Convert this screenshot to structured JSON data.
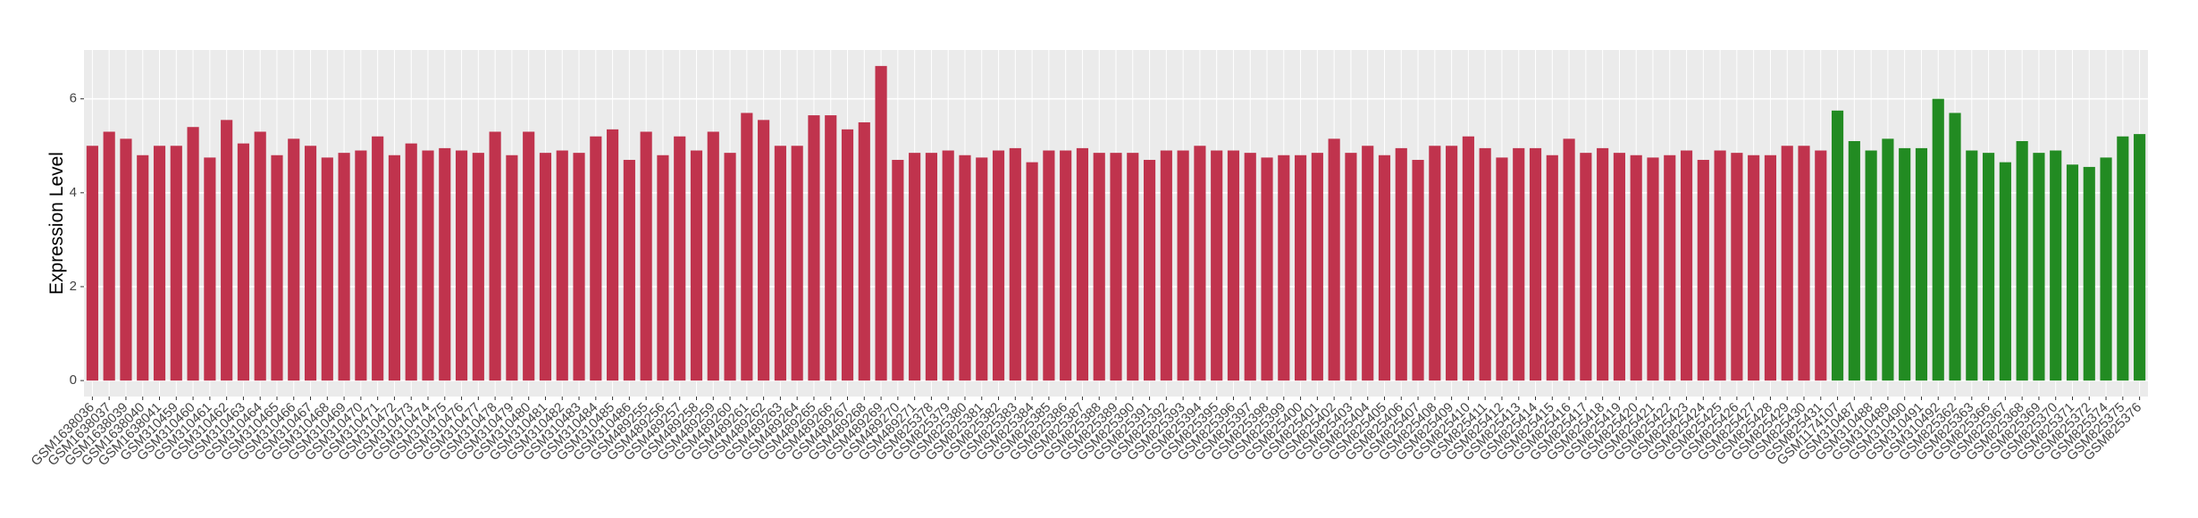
{
  "chart_data": {
    "type": "bar",
    "y_label": "Expression Level",
    "categories": [
      "GSM1638036",
      "GSM1638037",
      "GSM1638039",
      "GSM1638040",
      "GSM1638041",
      "GSM310459",
      "GSM310460",
      "GSM310461",
      "GSM310462",
      "GSM310463",
      "GSM310464",
      "GSM310465",
      "GSM310466",
      "GSM310467",
      "GSM310468",
      "GSM310469",
      "GSM310470",
      "GSM310471",
      "GSM310472",
      "GSM310473",
      "GSM310474",
      "GSM310475",
      "GSM310476",
      "GSM310477",
      "GSM310478",
      "GSM310479",
      "GSM310480",
      "GSM310481",
      "GSM310482",
      "GSM310483",
      "GSM310484",
      "GSM310485",
      "GSM310486",
      "GSM489255",
      "GSM489256",
      "GSM489257",
      "GSM489258",
      "GSM489259",
      "GSM489260",
      "GSM489261",
      "GSM489262",
      "GSM489263",
      "GSM489264",
      "GSM489265",
      "GSM489266",
      "GSM489267",
      "GSM489268",
      "GSM489269",
      "GSM489270",
      "GSM489271",
      "GSM825378",
      "GSM825379",
      "GSM825380",
      "GSM825381",
      "GSM825382",
      "GSM825383",
      "GSM825384",
      "GSM825385",
      "GSM825386",
      "GSM825387",
      "GSM825388",
      "GSM825389",
      "GSM825390",
      "GSM825391",
      "GSM825392",
      "GSM825393",
      "GSM825394",
      "GSM825395",
      "GSM825396",
      "GSM825397",
      "GSM825398",
      "GSM825399",
      "GSM825400",
      "GSM825401",
      "GSM825402",
      "GSM825403",
      "GSM825404",
      "GSM825405",
      "GSM825406",
      "GSM825407",
      "GSM825408",
      "GSM825409",
      "GSM825410",
      "GSM825411",
      "GSM825412",
      "GSM825413",
      "GSM825414",
      "GSM825415",
      "GSM825416",
      "GSM825417",
      "GSM825418",
      "GSM825419",
      "GSM825420",
      "GSM825421",
      "GSM825422",
      "GSM825423",
      "GSM825424",
      "GSM825425",
      "GSM825426",
      "GSM825427",
      "GSM825428",
      "GSM825429",
      "GSM825430",
      "GSM825431",
      "GSM1174107",
      "GSM310487",
      "GSM310488",
      "GSM310489",
      "GSM310490",
      "GSM310491",
      "GSM310492",
      "GSM825362",
      "GSM825363",
      "GSM825366",
      "GSM825367",
      "GSM825368",
      "GSM825369",
      "GSM825370",
      "GSM825371",
      "GSM825372",
      "GSM825374",
      "GSM825375",
      "GSM825376"
    ],
    "values": [
      5.0,
      5.3,
      5.15,
      4.8,
      5.0,
      5.0,
      5.4,
      4.75,
      5.55,
      5.05,
      5.3,
      4.8,
      5.15,
      5.0,
      4.75,
      4.85,
      4.9,
      5.2,
      4.8,
      5.05,
      4.9,
      4.95,
      4.9,
      4.85,
      5.3,
      4.8,
      5.3,
      4.85,
      4.9,
      4.85,
      5.2,
      5.35,
      4.7,
      5.3,
      4.8,
      5.2,
      4.9,
      5.3,
      4.85,
      5.7,
      5.55,
      5.0,
      5.0,
      5.65,
      5.65,
      5.35,
      5.5,
      6.7,
      4.7,
      4.85,
      4.85,
      4.9,
      4.8,
      4.75,
      4.9,
      4.95,
      4.65,
      4.9,
      4.9,
      4.95,
      4.85,
      4.85,
      4.85,
      4.7,
      4.9,
      4.9,
      5.0,
      4.9,
      4.9,
      4.85,
      4.75,
      4.8,
      4.8,
      4.85,
      5.15,
      4.85,
      5.0,
      4.8,
      4.95,
      4.7,
      5.0,
      5.0,
      5.2,
      4.95,
      4.75,
      4.95,
      4.95,
      4.8,
      5.15,
      4.85,
      4.95,
      4.85,
      4.8,
      4.75,
      4.8,
      4.9,
      4.7,
      4.9,
      4.85,
      4.8,
      4.8,
      5.0,
      5.0,
      4.9,
      5.75,
      5.1,
      4.9,
      5.15,
      4.95,
      4.95,
      6.0,
      5.7,
      4.9,
      4.85,
      4.65,
      5.1,
      4.85,
      4.9,
      4.6,
      4.55,
      4.75,
      5.2,
      5.25
    ],
    "colors": [
      "#c0334d",
      "#c0334d",
      "#c0334d",
      "#c0334d",
      "#c0334d",
      "#c0334d",
      "#c0334d",
      "#c0334d",
      "#c0334d",
      "#c0334d",
      "#c0334d",
      "#c0334d",
      "#c0334d",
      "#c0334d",
      "#c0334d",
      "#c0334d",
      "#c0334d",
      "#c0334d",
      "#c0334d",
      "#c0334d",
      "#c0334d",
      "#c0334d",
      "#c0334d",
      "#c0334d",
      "#c0334d",
      "#c0334d",
      "#c0334d",
      "#c0334d",
      "#c0334d",
      "#c0334d",
      "#c0334d",
      "#c0334d",
      "#c0334d",
      "#c0334d",
      "#c0334d",
      "#c0334d",
      "#c0334d",
      "#c0334d",
      "#c0334d",
      "#c0334d",
      "#c0334d",
      "#c0334d",
      "#c0334d",
      "#c0334d",
      "#c0334d",
      "#c0334d",
      "#c0334d",
      "#c0334d",
      "#c0334d",
      "#c0334d",
      "#c0334d",
      "#c0334d",
      "#c0334d",
      "#c0334d",
      "#c0334d",
      "#c0334d",
      "#c0334d",
      "#c0334d",
      "#c0334d",
      "#c0334d",
      "#c0334d",
      "#c0334d",
      "#c0334d",
      "#c0334d",
      "#c0334d",
      "#c0334d",
      "#c0334d",
      "#c0334d",
      "#c0334d",
      "#c0334d",
      "#c0334d",
      "#c0334d",
      "#c0334d",
      "#c0334d",
      "#c0334d",
      "#c0334d",
      "#c0334d",
      "#c0334d",
      "#c0334d",
      "#c0334d",
      "#c0334d",
      "#c0334d",
      "#c0334d",
      "#c0334d",
      "#c0334d",
      "#c0334d",
      "#c0334d",
      "#c0334d",
      "#c0334d",
      "#c0334d",
      "#c0334d",
      "#c0334d",
      "#c0334d",
      "#c0334d",
      "#c0334d",
      "#c0334d",
      "#c0334d",
      "#c0334d",
      "#c0334d",
      "#c0334d",
      "#c0334d",
      "#c0334d",
      "#c0334d",
      "#c0334d",
      "#228b22",
      "#228b22",
      "#228b22",
      "#228b22",
      "#228b22",
      "#228b22",
      "#228b22",
      "#228b22",
      "#228b22",
      "#228b22",
      "#228b22",
      "#228b22",
      "#228b22",
      "#228b22",
      "#228b22",
      "#228b22",
      "#228b22",
      "#228b22",
      "#228b22"
    ],
    "ylim": [
      -0.34,
      7.04
    ],
    "yticks": [
      0,
      2,
      4,
      6
    ],
    "grid": true
  }
}
